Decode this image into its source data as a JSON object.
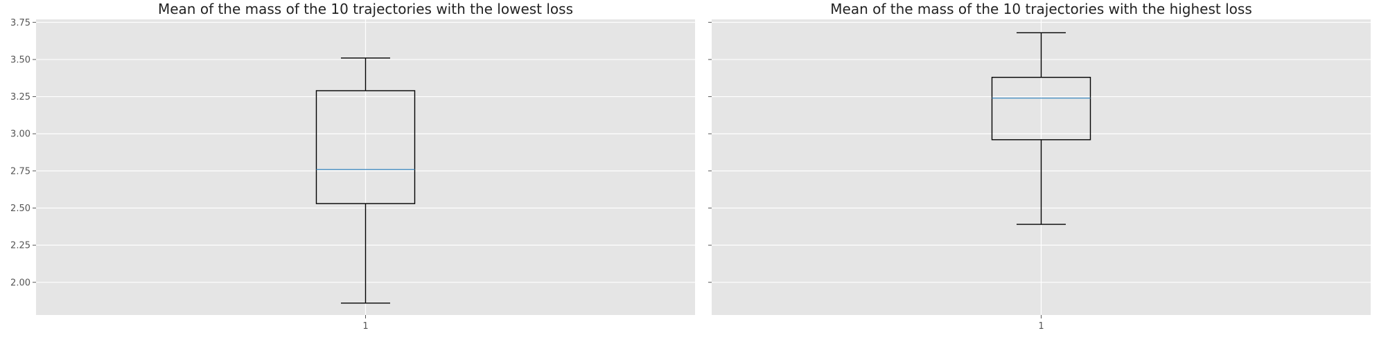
{
  "chart_data": [
    {
      "type": "box",
      "title": "Mean of the mass of the 10 trajectories with the lowest loss",
      "categories": [
        "1"
      ],
      "box": {
        "whisker_low": 1.86,
        "q1": 2.53,
        "median": 2.76,
        "q3": 3.29,
        "whisker_high": 3.51
      },
      "ylim": [
        1.78,
        3.77
      ],
      "yticks": [
        "2.00",
        "2.25",
        "2.50",
        "2.75",
        "3.00",
        "3.25",
        "3.50",
        "3.75"
      ],
      "grid": true,
      "median_color": "#4a90c4",
      "background_color": "#e5e5e5"
    },
    {
      "type": "box",
      "title": "Mean of the mass of the 10 trajectories with the highest loss",
      "categories": [
        "1"
      ],
      "box": {
        "whisker_low": 2.39,
        "q1": 2.96,
        "median": 3.24,
        "q3": 3.38,
        "whisker_high": 3.68
      },
      "ylim": [
        1.78,
        3.77
      ],
      "yticks": [
        "2.00",
        "2.25",
        "2.50",
        "2.75",
        "3.00",
        "3.25",
        "3.50",
        "3.75"
      ],
      "sharey": true,
      "grid": true,
      "median_color": "#4a90c4",
      "background_color": "#e5e5e5"
    }
  ]
}
